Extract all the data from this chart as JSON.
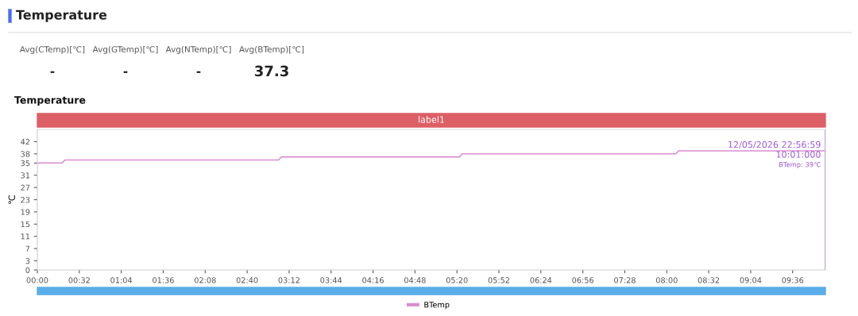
{
  "chart_data": {
    "type": "line",
    "title": "Temperature",
    "subtitle": "Temperature",
    "ylabel": "℃",
    "annotations": [
      "Avg(CTemp)[℃]",
      "-",
      "Avg(GTemp)[℃]",
      "-",
      "Avg(NTemp)[℃]",
      "-",
      "Avg(BTemp)[℃]",
      "37.3",
      "12/05/2026 22:56:59",
      "10:01:000",
      "BTemp: 39℃",
      "label1"
    ],
    "series": [
      {
        "name": "BTemp",
        "color": "#d98cd0",
        "x": [
          0,
          19,
          21,
          184,
          186,
          322,
          324,
          487,
          489,
          601
        ],
        "values": [
          35,
          35,
          36,
          36,
          37,
          37,
          38,
          38,
          39,
          39
        ]
      }
    ],
    "xlim": [
      0,
      601
    ],
    "ylim": [
      0,
      46
    ],
    "xticks": [
      {
        "value": 0,
        "label": "00:00"
      },
      {
        "value": 32,
        "label": "00:32"
      },
      {
        "value": 64,
        "label": "01:04"
      },
      {
        "value": 96,
        "label": "01:36"
      },
      {
        "value": 128,
        "label": "02:08"
      },
      {
        "value": 160,
        "label": "02:40"
      },
      {
        "value": 192,
        "label": "03:12"
      },
      {
        "value": 224,
        "label": "03:44"
      },
      {
        "value": 256,
        "label": "04:16"
      },
      {
        "value": 288,
        "label": "04:48"
      },
      {
        "value": 320,
        "label": "05:20"
      },
      {
        "value": 352,
        "label": "05:52"
      },
      {
        "value": 384,
        "label": "06:24"
      },
      {
        "value": 416,
        "label": "06:56"
      },
      {
        "value": 448,
        "label": "07:28"
      },
      {
        "value": 480,
        "label": "08:00"
      },
      {
        "value": 512,
        "label": "08:32"
      },
      {
        "value": 544,
        "label": "09:04"
      },
      {
        "value": 576,
        "label": "09:36"
      }
    ],
    "yticks": [
      0,
      3,
      7,
      11,
      15,
      19,
      23,
      27,
      31,
      35,
      38,
      42
    ],
    "ref_lines": [
      {
        "axis": "x",
        "value": 601,
        "color": "#a070e0"
      }
    ],
    "grid": false,
    "legend": "bottom",
    "marker": "none",
    "line_style": "solid"
  }
}
